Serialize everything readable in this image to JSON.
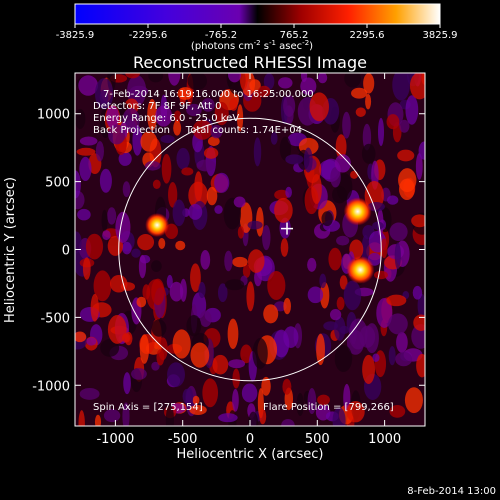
{
  "colorbar": {
    "ticks": [
      "-3825.9",
      "-2295.6",
      "-765.2",
      "765.2",
      "2295.6",
      "3825.9"
    ],
    "units_parts": {
      "a": "(photons cm",
      "b": "-2",
      "c": " s",
      "d": "-1",
      "e": " asec",
      "f": "-2",
      "g": ")"
    }
  },
  "chart_data": {
    "type": "heatmap",
    "title": "Reconstructed RHESSI Image",
    "xlabel": "Heliocentric X (arcsec)",
    "ylabel": "Heliocentric Y (arcsec)",
    "xlim": [
      -1300,
      1300
    ],
    "ylim": [
      -1300,
      1300
    ],
    "x_ticks": [
      "-1000",
      "-500",
      "0",
      "500",
      "1000"
    ],
    "y_ticks": [
      "1000",
      "500",
      "0",
      "-500",
      "-1000"
    ],
    "value_range": [
      -3825.9,
      3825.9
    ],
    "solar_disk": {
      "center": [
        0,
        0
      ],
      "radius_arcsec": 975
    },
    "flare_marker": [
      275,
      154
    ],
    "bright_sources": [
      {
        "x": 800,
        "y": 280
      },
      {
        "x": 820,
        "y": -150
      },
      {
        "x": -690,
        "y": 180
      }
    ],
    "annotations": {
      "time_range": "7-Feb-2014 16:19:16.000 to 16:25:00.000",
      "detectors": "Detectors: 7F 8F 9F, Att 0",
      "energy_range": "Energy Range: 6.0 - 25.0 keV",
      "method_and_counts": "Back Projection     Total counts: 1.74E+04",
      "spin_axis": "Spin Axis = [275,154]",
      "flare_position": "Flare Position = [799,266]"
    },
    "colors": {
      "minimum": "#0000ff",
      "negative_mid": "#7a00c8",
      "zero": "#000000",
      "positive_mid": "#e00000",
      "high": "#ffa000",
      "maximum": "#ffffff"
    }
  },
  "footer": {
    "timestamp": "8-Feb-2014 13:00"
  }
}
